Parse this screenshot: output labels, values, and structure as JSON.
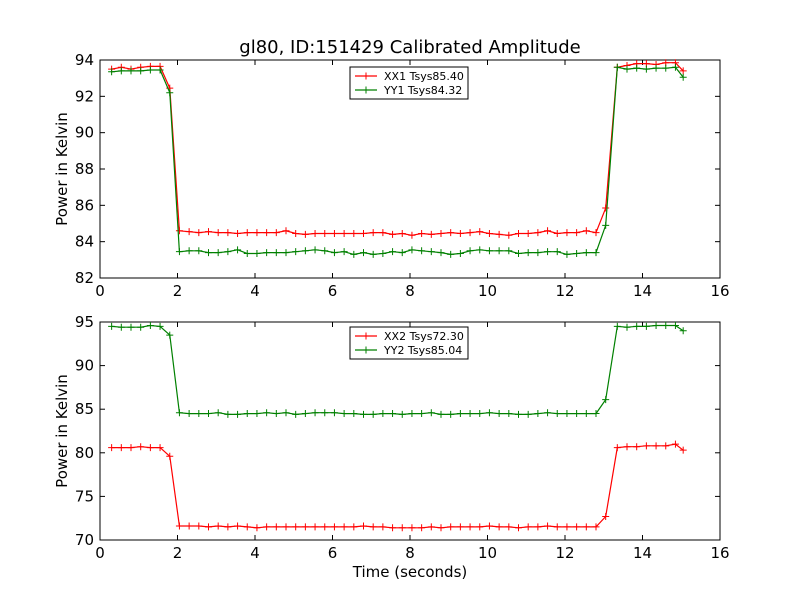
{
  "title": "gl80, ID:151429 Calibrated Amplitude",
  "colors": {
    "xx": "#ff0000",
    "yy": "#008000"
  },
  "chart_data": [
    {
      "type": "line",
      "ylabel": "Power in Kelvin",
      "xlabel": "",
      "xlim": [
        0,
        16
      ],
      "ylim": [
        82,
        94
      ],
      "xticks": [
        0,
        2,
        4,
        6,
        8,
        10,
        12,
        14,
        16
      ],
      "yticks": [
        82,
        84,
        86,
        88,
        90,
        92,
        94
      ],
      "legend_position": "top-center",
      "x": [
        0.3,
        0.55,
        0.8,
        1.05,
        1.3,
        1.55,
        1.8,
        2.05,
        2.3,
        2.55,
        2.8,
        3.05,
        3.3,
        3.55,
        3.8,
        4.05,
        4.3,
        4.55,
        4.8,
        5.05,
        5.3,
        5.55,
        5.8,
        6.05,
        6.3,
        6.55,
        6.8,
        7.05,
        7.3,
        7.55,
        7.8,
        8.05,
        8.3,
        8.55,
        8.8,
        9.05,
        9.3,
        9.55,
        9.8,
        10.05,
        10.3,
        10.55,
        10.8,
        11.05,
        11.3,
        11.55,
        11.8,
        12.05,
        12.3,
        12.55,
        12.8,
        13.05,
        13.35,
        13.6,
        13.85,
        14.1,
        14.35,
        14.6,
        14.85,
        15.05
      ],
      "series": [
        {
          "name": "XX1 Tsys85.40",
          "color": "#ff0000",
          "values": [
            93.5,
            93.6,
            93.5,
            93.6,
            93.65,
            93.65,
            92.45,
            84.6,
            84.55,
            84.5,
            84.55,
            84.5,
            84.5,
            84.45,
            84.5,
            84.5,
            84.5,
            84.5,
            84.6,
            84.45,
            84.4,
            84.45,
            84.45,
            84.45,
            84.45,
            84.45,
            84.45,
            84.5,
            84.5,
            84.4,
            84.45,
            84.35,
            84.45,
            84.4,
            84.45,
            84.5,
            84.45,
            84.5,
            84.55,
            84.45,
            84.4,
            84.35,
            84.45,
            84.45,
            84.5,
            84.6,
            84.45,
            84.5,
            84.5,
            84.6,
            84.5,
            85.85,
            93.6,
            93.7,
            93.8,
            93.8,
            93.75,
            93.85,
            93.85,
            93.4
          ]
        },
        {
          "name": "YY1 Tsys84.32",
          "color": "#008000",
          "values": [
            93.35,
            93.4,
            93.4,
            93.4,
            93.45,
            93.45,
            92.2,
            83.45,
            83.5,
            83.5,
            83.4,
            83.4,
            83.45,
            83.55,
            83.35,
            83.35,
            83.4,
            83.4,
            83.4,
            83.45,
            83.5,
            83.55,
            83.5,
            83.4,
            83.45,
            83.3,
            83.4,
            83.3,
            83.35,
            83.45,
            83.4,
            83.55,
            83.5,
            83.45,
            83.4,
            83.3,
            83.35,
            83.5,
            83.55,
            83.5,
            83.5,
            83.5,
            83.35,
            83.4,
            83.4,
            83.45,
            83.45,
            83.3,
            83.35,
            83.4,
            83.4,
            84.9,
            93.6,
            93.5,
            93.55,
            93.5,
            93.55,
            93.55,
            93.6,
            93.05
          ]
        }
      ]
    },
    {
      "type": "line",
      "ylabel": "Power in Kelvin",
      "xlabel": "Time (seconds)",
      "xlim": [
        0,
        16
      ],
      "ylim": [
        70,
        95
      ],
      "xticks": [
        0,
        2,
        4,
        6,
        8,
        10,
        12,
        14,
        16
      ],
      "yticks": [
        70,
        75,
        80,
        85,
        90,
        95
      ],
      "legend_position": "top-center",
      "x": [
        0.3,
        0.55,
        0.8,
        1.05,
        1.3,
        1.55,
        1.8,
        2.05,
        2.3,
        2.55,
        2.8,
        3.05,
        3.3,
        3.55,
        3.8,
        4.05,
        4.3,
        4.55,
        4.8,
        5.05,
        5.3,
        5.55,
        5.8,
        6.05,
        6.3,
        6.55,
        6.8,
        7.05,
        7.3,
        7.55,
        7.8,
        8.05,
        8.3,
        8.55,
        8.8,
        9.05,
        9.3,
        9.55,
        9.8,
        10.05,
        10.3,
        10.55,
        10.8,
        11.05,
        11.3,
        11.55,
        11.8,
        12.05,
        12.3,
        12.55,
        12.8,
        13.05,
        13.35,
        13.6,
        13.85,
        14.1,
        14.35,
        14.6,
        14.85,
        15.05
      ],
      "series": [
        {
          "name": "XX2 Tsys72.30",
          "color": "#ff0000",
          "values": [
            80.6,
            80.6,
            80.6,
            80.7,
            80.6,
            80.6,
            79.6,
            71.6,
            71.6,
            71.6,
            71.5,
            71.6,
            71.5,
            71.6,
            71.5,
            71.4,
            71.5,
            71.5,
            71.5,
            71.5,
            71.5,
            71.5,
            71.5,
            71.5,
            71.5,
            71.5,
            71.6,
            71.5,
            71.5,
            71.4,
            71.4,
            71.4,
            71.4,
            71.5,
            71.4,
            71.5,
            71.5,
            71.5,
            71.5,
            71.6,
            71.5,
            71.5,
            71.4,
            71.5,
            71.5,
            71.6,
            71.5,
            71.5,
            71.5,
            71.5,
            71.5,
            72.7,
            80.6,
            80.7,
            80.7,
            80.8,
            80.8,
            80.8,
            81.0,
            80.3
          ]
        },
        {
          "name": "YY2 Tsys85.04",
          "color": "#008000",
          "values": [
            94.5,
            94.4,
            94.4,
            94.4,
            94.6,
            94.5,
            93.5,
            84.6,
            84.5,
            84.5,
            84.5,
            84.6,
            84.4,
            84.4,
            84.5,
            84.5,
            84.6,
            84.5,
            84.6,
            84.4,
            84.5,
            84.6,
            84.6,
            84.6,
            84.5,
            84.5,
            84.4,
            84.4,
            84.5,
            84.5,
            84.4,
            84.5,
            84.5,
            84.6,
            84.4,
            84.4,
            84.5,
            84.5,
            84.5,
            84.6,
            84.5,
            84.5,
            84.4,
            84.4,
            84.5,
            84.6,
            84.5,
            84.5,
            84.5,
            84.5,
            84.5,
            86.1,
            94.5,
            94.4,
            94.5,
            94.5,
            94.6,
            94.6,
            94.6,
            94.0
          ]
        }
      ]
    }
  ]
}
